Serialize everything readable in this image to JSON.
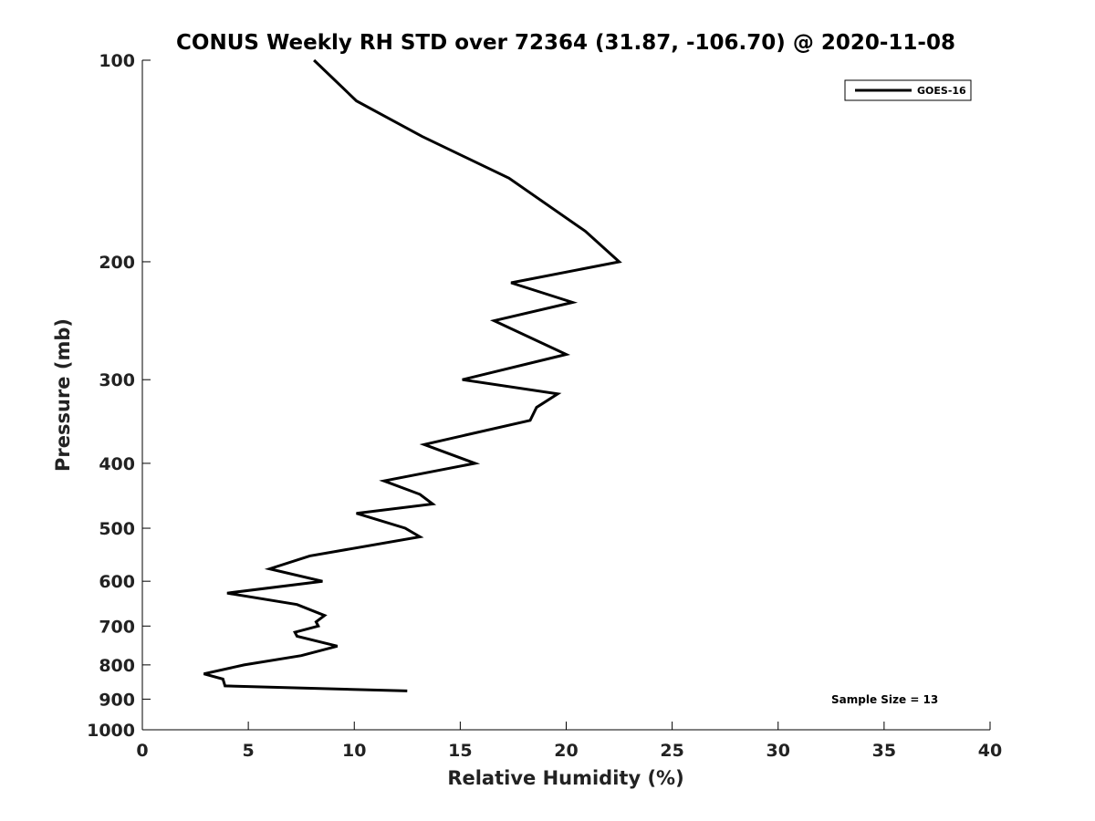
{
  "chart_data": {
    "type": "line",
    "title": "CONUS Weekly RH STD over 72364 (31.87, -106.70) @ 2020-11-08",
    "xlabel": "Relative Humidity (%)",
    "ylabel": "Pressure (mb)",
    "xlim": [
      0,
      40
    ],
    "ylim": [
      1000,
      100
    ],
    "y_scale": "log",
    "y_reversed": true,
    "x_ticks": [
      0,
      5,
      10,
      15,
      20,
      25,
      30,
      35,
      40
    ],
    "y_ticks": [
      100,
      200,
      300,
      400,
      500,
      600,
      700,
      800,
      900,
      1000
    ],
    "grid": false,
    "legend_position": "top-right",
    "annotation": "Sample Size = 13",
    "series": [
      {
        "name": "GOES-16",
        "color": "#000000",
        "points": [
          {
            "x": 8.1,
            "y": 100
          },
          {
            "x": 10.1,
            "y": 115
          },
          {
            "x": 13.2,
            "y": 130
          },
          {
            "x": 17.3,
            "y": 150
          },
          {
            "x": 20.9,
            "y": 180
          },
          {
            "x": 22.5,
            "y": 200
          },
          {
            "x": 17.4,
            "y": 215
          },
          {
            "x": 20.3,
            "y": 230
          },
          {
            "x": 16.6,
            "y": 245
          },
          {
            "x": 20.0,
            "y": 275
          },
          {
            "x": 15.1,
            "y": 300
          },
          {
            "x": 19.6,
            "y": 315
          },
          {
            "x": 18.6,
            "y": 330
          },
          {
            "x": 18.3,
            "y": 345
          },
          {
            "x": 13.3,
            "y": 375
          },
          {
            "x": 15.7,
            "y": 400
          },
          {
            "x": 11.4,
            "y": 425
          },
          {
            "x": 13.1,
            "y": 445
          },
          {
            "x": 13.7,
            "y": 460
          },
          {
            "x": 10.1,
            "y": 475
          },
          {
            "x": 12.4,
            "y": 500
          },
          {
            "x": 13.1,
            "y": 515
          },
          {
            "x": 7.9,
            "y": 550
          },
          {
            "x": 6.0,
            "y": 575
          },
          {
            "x": 8.5,
            "y": 600
          },
          {
            "x": 4.0,
            "y": 625
          },
          {
            "x": 7.3,
            "y": 650
          },
          {
            "x": 8.6,
            "y": 675
          },
          {
            "x": 8.2,
            "y": 690
          },
          {
            "x": 8.3,
            "y": 700
          },
          {
            "x": 7.2,
            "y": 715
          },
          {
            "x": 7.3,
            "y": 725
          },
          {
            "x": 9.2,
            "y": 750
          },
          {
            "x": 7.5,
            "y": 775
          },
          {
            "x": 4.8,
            "y": 800
          },
          {
            "x": 2.9,
            "y": 825
          },
          {
            "x": 3.8,
            "y": 840
          },
          {
            "x": 3.9,
            "y": 860
          },
          {
            "x": 12.5,
            "y": 875
          }
        ]
      }
    ]
  }
}
